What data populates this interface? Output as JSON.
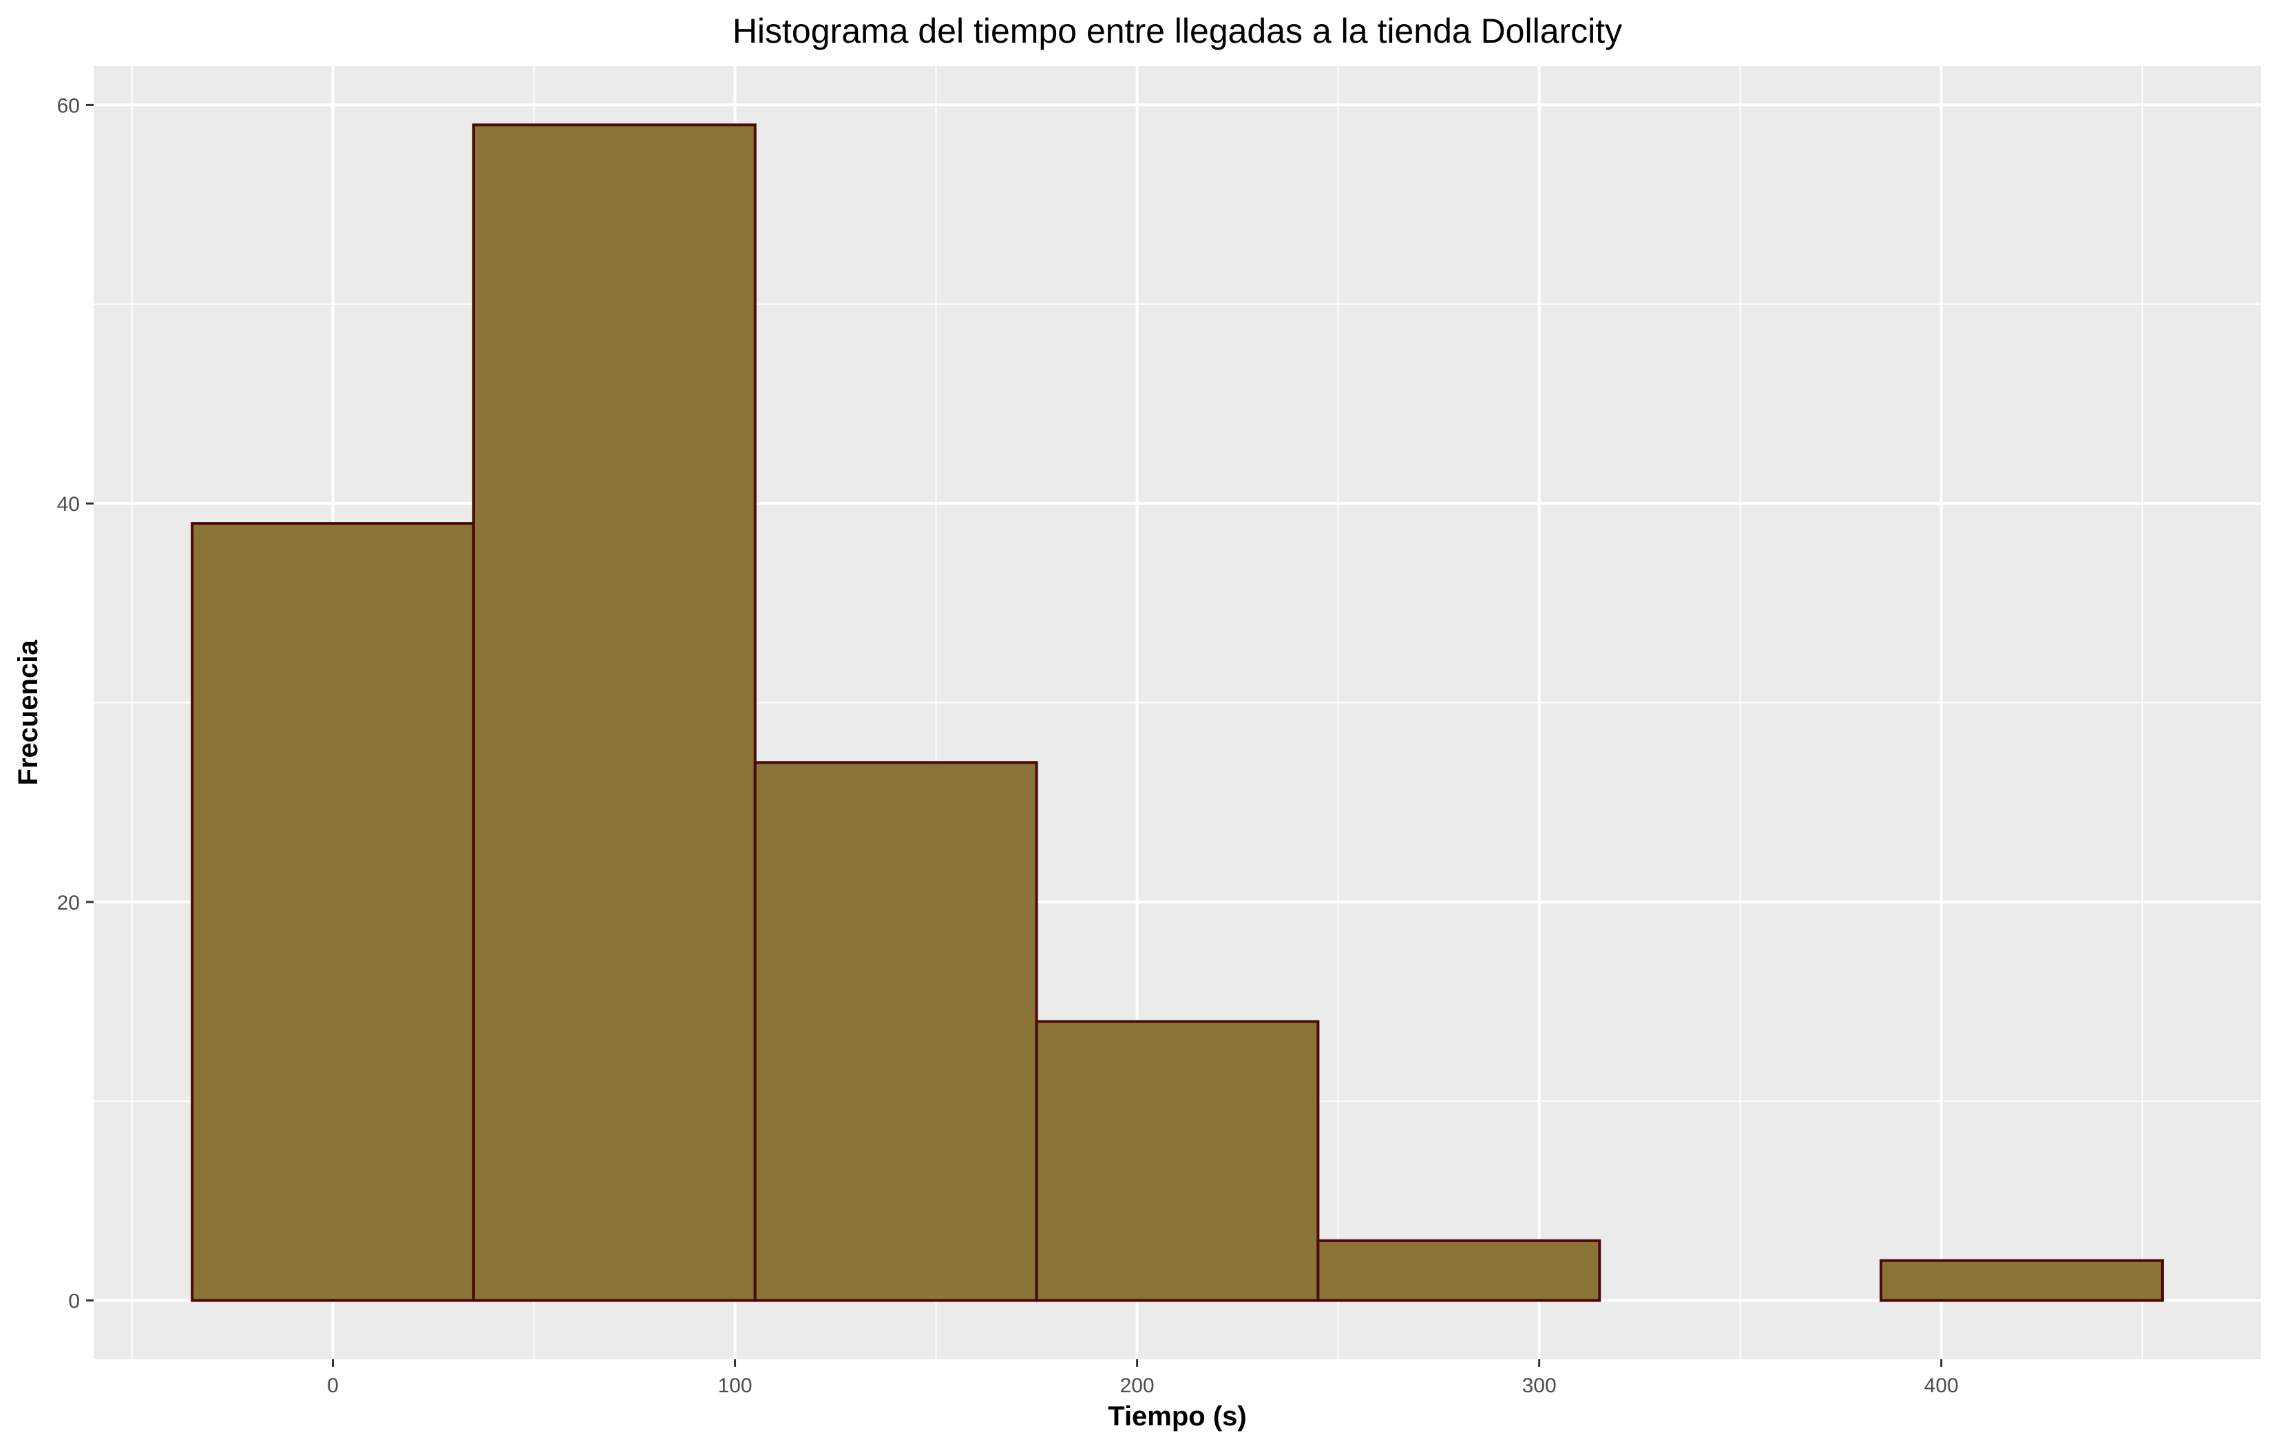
{
  "chart_data": {
    "type": "bar",
    "title": "Histograma del tiempo entre llegadas a la tienda Dollarcity",
    "xlabel": "Tiempo (s)",
    "ylabel": "Frecuencia",
    "bins": [
      {
        "x_start": -35,
        "x_end": 35,
        "count": 39
      },
      {
        "x_start": 35,
        "x_end": 105,
        "count": 59
      },
      {
        "x_start": 105,
        "x_end": 175,
        "count": 27
      },
      {
        "x_start": 175,
        "x_end": 245,
        "count": 14
      },
      {
        "x_start": 245,
        "x_end": 315,
        "count": 3
      },
      {
        "x_start": 315,
        "x_end": 385,
        "count": 0
      },
      {
        "x_start": 385,
        "x_end": 455,
        "count": 2
      }
    ],
    "xlim": [
      -59.5,
      479.5
    ],
    "ylim": [
      -2.95,
      61.95
    ],
    "x_ticks": [
      0,
      100,
      200,
      300,
      400
    ],
    "x_tick_labels": [
      "0",
      "100",
      "200",
      "300",
      "400"
    ],
    "x_minor_ticks": [
      -50,
      50,
      150,
      250,
      350,
      450
    ],
    "y_ticks": [
      0,
      20,
      40,
      60
    ],
    "y_tick_labels": [
      "0",
      "20",
      "40",
      "60"
    ],
    "y_minor_ticks": [
      10,
      30,
      50
    ],
    "grid": true,
    "colors": {
      "bar_fill": "#8b7536",
      "bar_stroke": "#4a0a0a",
      "panel_background": "#ebebeb",
      "grid": "#ffffff"
    }
  }
}
